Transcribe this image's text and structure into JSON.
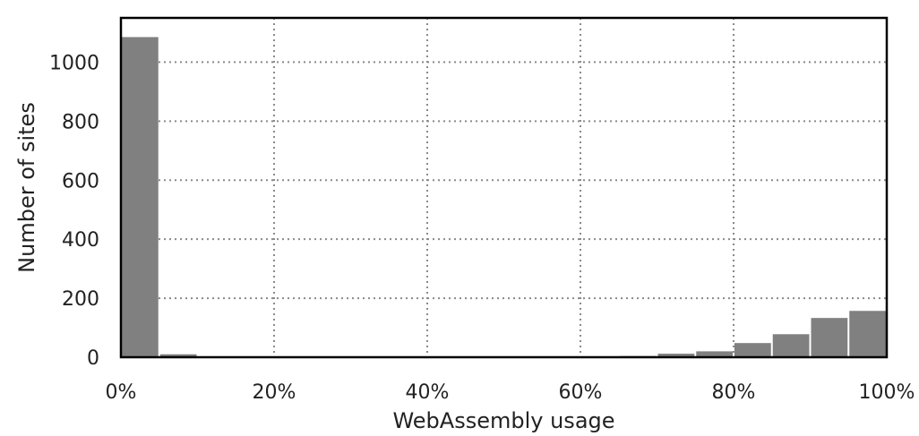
{
  "chart_data": {
    "type": "bar",
    "title": "",
    "xlabel": "WebAssembly usage",
    "ylabel": "Number of sites",
    "xlim": [
      0,
      100
    ],
    "ylim": [
      0,
      1150
    ],
    "x_ticks": [
      0,
      20,
      40,
      60,
      80,
      100
    ],
    "x_tick_labels": [
      "0%",
      "20%",
      "40%",
      "60%",
      "80%",
      "100%"
    ],
    "y_ticks": [
      0,
      200,
      400,
      600,
      800,
      1000
    ],
    "y_tick_labels": [
      "0",
      "200",
      "400",
      "600",
      "800",
      "1000"
    ],
    "grid": true,
    "bin_width": 5,
    "bins": [
      {
        "start": 0,
        "end": 5,
        "value": 1085
      },
      {
        "start": 5,
        "end": 10,
        "value": 10
      },
      {
        "start": 10,
        "end": 15,
        "value": 2
      },
      {
        "start": 15,
        "end": 20,
        "value": 1
      },
      {
        "start": 20,
        "end": 25,
        "value": 1
      },
      {
        "start": 25,
        "end": 30,
        "value": 0
      },
      {
        "start": 30,
        "end": 35,
        "value": 1
      },
      {
        "start": 35,
        "end": 40,
        "value": 0
      },
      {
        "start": 40,
        "end": 45,
        "value": 0
      },
      {
        "start": 45,
        "end": 50,
        "value": 1
      },
      {
        "start": 50,
        "end": 55,
        "value": 1
      },
      {
        "start": 55,
        "end": 60,
        "value": 1
      },
      {
        "start": 60,
        "end": 65,
        "value": 2
      },
      {
        "start": 65,
        "end": 70,
        "value": 4
      },
      {
        "start": 70,
        "end": 75,
        "value": 12
      },
      {
        "start": 75,
        "end": 80,
        "value": 20
      },
      {
        "start": 80,
        "end": 85,
        "value": 48
      },
      {
        "start": 85,
        "end": 90,
        "value": 78
      },
      {
        "start": 90,
        "end": 95,
        "value": 133
      },
      {
        "start": 95,
        "end": 100,
        "value": 157
      }
    ],
    "bar_color": "#808080"
  }
}
